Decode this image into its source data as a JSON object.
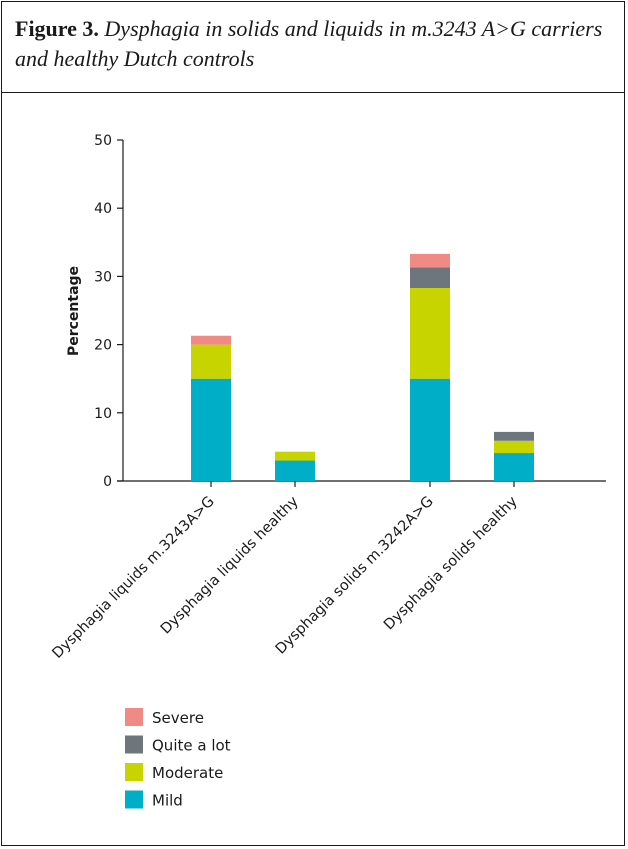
{
  "caption": {
    "label": "Figure 3.",
    "title": "Dysphagia in solids and liquids in m.3243 A>G carriers and healthy Dutch controls"
  },
  "chart_data": {
    "type": "bar",
    "stacked": true,
    "title": "",
    "xlabel": "",
    "ylabel": "Percentage",
    "ylim": [
      0,
      50
    ],
    "yticks": [
      0,
      10,
      20,
      30,
      40,
      50
    ],
    "categories": [
      "Dysphagia liquids m.3243A>G",
      "Dysphagia liquids healthy",
      "Dysphagia solids m.3242A>G",
      "Dysphagia solids healthy"
    ],
    "series": [
      {
        "name": "Mild",
        "color": "#00aec7",
        "values": [
          15.0,
          3.0,
          15.0,
          4.1
        ]
      },
      {
        "name": "Moderate",
        "color": "#c8d400",
        "values": [
          5.0,
          1.3,
          13.3,
          1.8
        ]
      },
      {
        "name": "Quite a lot",
        "color": "#6d757d",
        "values": [
          0,
          0,
          3.0,
          1.3
        ]
      },
      {
        "name": "Severe",
        "color": "#f08a85",
        "values": [
          1.3,
          0,
          2.0,
          0
        ]
      }
    ],
    "legend_position": "bottom-left",
    "legend_order": [
      "Severe",
      "Quite a lot",
      "Moderate",
      "Mild"
    ],
    "grid": false
  }
}
